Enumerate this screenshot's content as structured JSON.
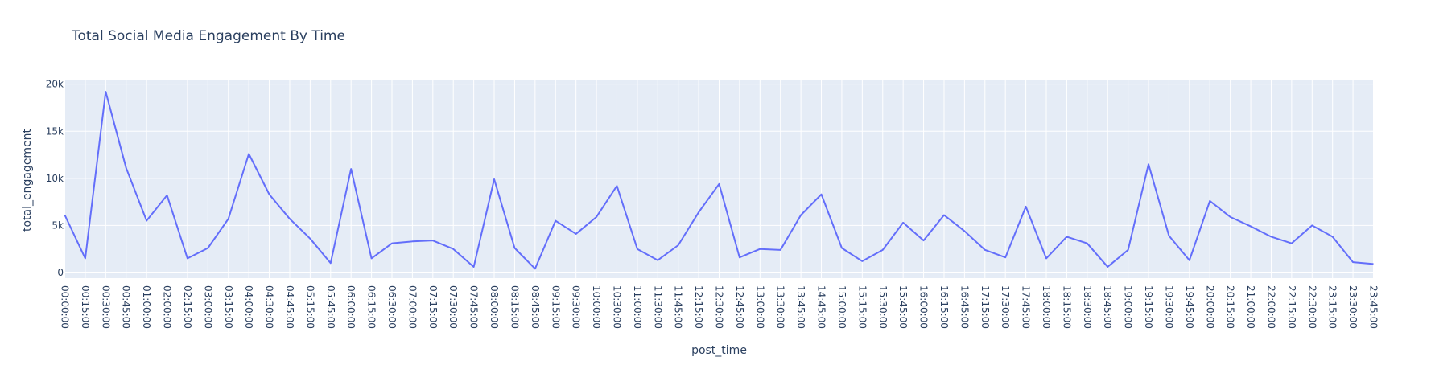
{
  "chart_data": {
    "type": "line",
    "title": "Total Social Media Engagement By Time",
    "xlabel": "post_time",
    "ylabel": "total_engagement",
    "ylim": [
      -600,
      20400
    ],
    "yticks": [
      0,
      5000,
      10000,
      15000,
      20000
    ],
    "ytick_labels": [
      "0",
      "5k",
      "10k",
      "15k",
      "20k"
    ],
    "grid": true,
    "line_color": "#636efa",
    "plot_bg_color": "#e5ecf6",
    "x": [
      "00:00:00",
      "00:15:00",
      "00:30:00",
      "00:45:00",
      "01:00:00",
      "02:00:00",
      "02:15:00",
      "03:00:00",
      "03:15:00",
      "04:00:00",
      "04:30:00",
      "04:45:00",
      "05:15:00",
      "05:45:00",
      "06:00:00",
      "06:15:00",
      "06:30:00",
      "07:00:00",
      "07:15:00",
      "07:30:00",
      "07:45:00",
      "08:00:00",
      "08:15:00",
      "08:45:00",
      "09:15:00",
      "09:30:00",
      "10:00:00",
      "10:30:00",
      "11:00:00",
      "11:30:00",
      "11:45:00",
      "12:15:00",
      "12:30:00",
      "12:45:00",
      "13:00:00",
      "13:30:00",
      "13:45:00",
      "14:45:00",
      "15:00:00",
      "15:15:00",
      "15:30:00",
      "15:45:00",
      "16:00:00",
      "16:15:00",
      "16:45:00",
      "17:15:00",
      "17:30:00",
      "17:45:00",
      "18:00:00",
      "18:15:00",
      "18:30:00",
      "18:45:00",
      "19:00:00",
      "19:15:00",
      "19:30:00",
      "19:45:00",
      "20:00:00",
      "20:15:00",
      "21:00:00",
      "22:00:00",
      "22:15:00",
      "22:30:00",
      "23:15:00",
      "23:30:00",
      "23:45:00"
    ],
    "series": [
      {
        "values": [
          6100,
          1500,
          19200,
          11100,
          5500,
          8200,
          1500,
          2600,
          5700,
          12600,
          8300,
          5700,
          3600,
          1000,
          11000,
          1500,
          3100,
          3300,
          3400,
          2500,
          600,
          9900,
          2600,
          400,
          5500,
          4100,
          5900,
          9200,
          2500,
          1300,
          2900,
          6400,
          9400,
          1600,
          2500,
          2400,
          6100,
          8300,
          2600,
          1200,
          2400,
          5300,
          3400,
          6100,
          4400,
          2400,
          1600,
          7000,
          1500,
          3800,
          3100,
          600,
          2400,
          11500,
          3900,
          1300,
          7600,
          5900,
          4900,
          3800,
          3100,
          5000,
          3800,
          1100,
          900
        ]
      }
    ]
  }
}
